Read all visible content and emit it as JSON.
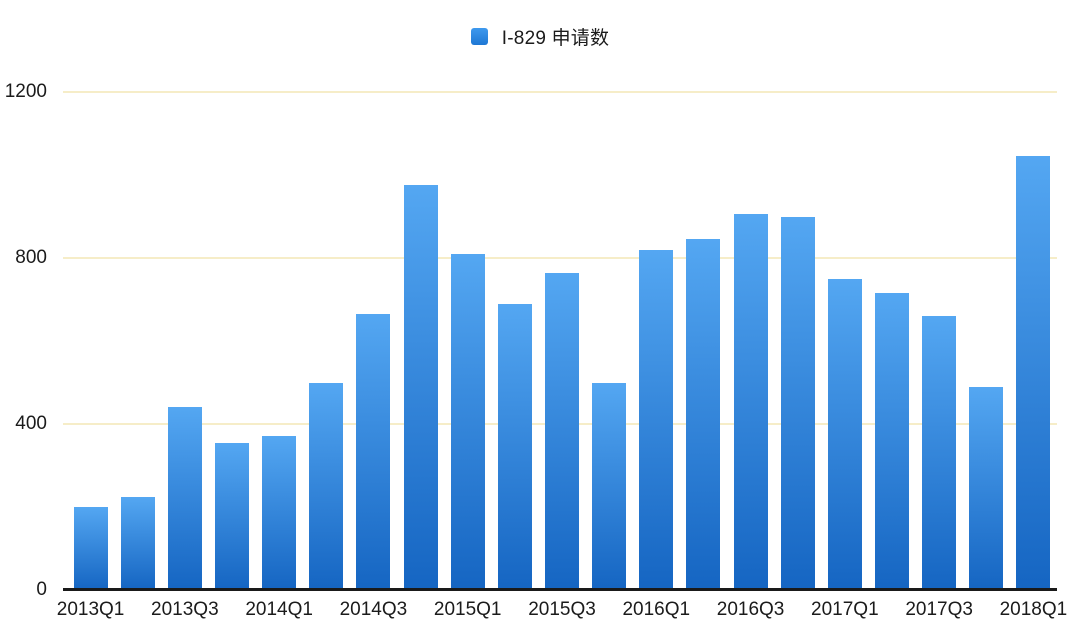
{
  "legend": {
    "label": "I-829 申请数"
  },
  "colors": {
    "background": "#ffffff",
    "bar_top": "#54a7f2",
    "bar_bottom": "#1565c2",
    "swatch_top": "#3e99ee",
    "swatch_bottom": "#1e77d4",
    "gridline": "#f6edc8",
    "axis_line": "#1a1a1a",
    "text": "#1b1b1b"
  },
  "chart_data": {
    "type": "bar",
    "title": "",
    "legend": "I-829 申请数",
    "legend_position": "top-center",
    "categories": [
      "2013Q1",
      "2013Q2",
      "2013Q3",
      "2013Q4",
      "2014Q1",
      "2014Q2",
      "2014Q3",
      "2014Q4",
      "2015Q1",
      "2015Q2",
      "2015Q3",
      "2015Q4",
      "2016Q1",
      "2016Q2",
      "2016Q3",
      "2016Q4",
      "2017Q1",
      "2017Q2",
      "2017Q3",
      "2017Q4",
      "2018Q1"
    ],
    "values": [
      200,
      225,
      440,
      355,
      370,
      500,
      665,
      975,
      810,
      690,
      765,
      500,
      820,
      845,
      905,
      900,
      750,
      715,
      660,
      490,
      1045
    ],
    "x_tick_labels": [
      "2013Q1",
      "2013Q3",
      "2014Q1",
      "2014Q3",
      "2015Q1",
      "2015Q3",
      "2016Q1",
      "2016Q3",
      "2017Q1",
      "2017Q3",
      "2018Q1"
    ],
    "x_tick_step": 2,
    "xlabel": "",
    "ylabel": "",
    "ylim": [
      0,
      1200
    ],
    "y_ticks": [
      0,
      400,
      800,
      1200
    ],
    "grid": true
  }
}
